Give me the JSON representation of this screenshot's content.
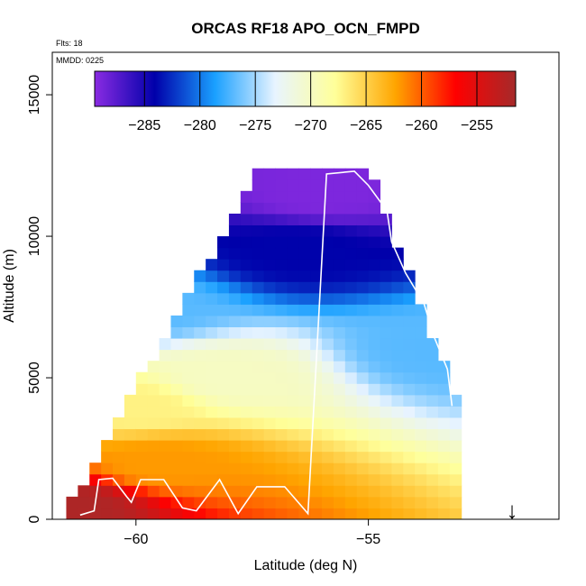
{
  "title": "ORCAS RF18 APO_OCN_FMPD",
  "flights_note": "Flts: 18",
  "date_note": "MMDD: 0225",
  "arrow_glyph": "↓",
  "chart_data": {
    "type": "heatmap",
    "title": "ORCAS RF18 APO_OCN_FMPD",
    "xlabel": "Latitude (deg N)",
    "ylabel": "Altitude (m)",
    "xlim": [
      -61.8,
      -50.9
    ],
    "ylim": [
      0,
      16500
    ],
    "xticks": [
      -60,
      -55
    ],
    "yticks": [
      0,
      5000,
      10000,
      15000
    ],
    "colorbar": {
      "range": [
        -289.5,
        -251.5
      ],
      "ticks": [
        -285,
        -280,
        -275,
        -270,
        -265,
        -260,
        -255
      ],
      "orientation": "horizontal",
      "position": "top",
      "colors": [
        "#8a2be2",
        "#0000aa",
        "#1aa0ff",
        "#e8f4ff",
        "#ffff99",
        "#ffa500",
        "#ff0000",
        "#a52a2a"
      ]
    },
    "field_description_points": [
      {
        "lat": -61.5,
        "alt": 500,
        "value": -252
      },
      {
        "lat": -59.5,
        "alt": 2000,
        "value": -262
      },
      {
        "lat": -60.0,
        "alt": 4000,
        "value": -267
      },
      {
        "lat": -58.0,
        "alt": 5000,
        "value": -270
      },
      {
        "lat": -60.0,
        "alt": 7500,
        "value": -277
      },
      {
        "lat": -56.5,
        "alt": 9500,
        "value": -284
      },
      {
        "lat": -56.0,
        "alt": 11500,
        "value": -289
      },
      {
        "lat": -53.5,
        "alt": 6000,
        "value": -277
      }
    ],
    "flight_track": {
      "x": [
        -61.2,
        -60.9,
        -60.8,
        -60.5,
        -60.2,
        -60.1,
        -59.9,
        -59.4,
        -59.0,
        -58.7,
        -58.2,
        -57.8,
        -57.4,
        -56.8,
        -56.3,
        -55.9,
        -55.3,
        -55.0,
        -54.6,
        -54.5,
        -54.2,
        -53.8,
        -53.6,
        -53.3,
        -53.2
      ],
      "y": [
        150,
        300,
        1400,
        1450,
        800,
        600,
        1400,
        1400,
        400,
        300,
        1400,
        200,
        1150,
        1150,
        200,
        12200,
        12300,
        11800,
        10900,
        9800,
        8700,
        7600,
        6500,
        5300,
        4000
      ]
    }
  }
}
